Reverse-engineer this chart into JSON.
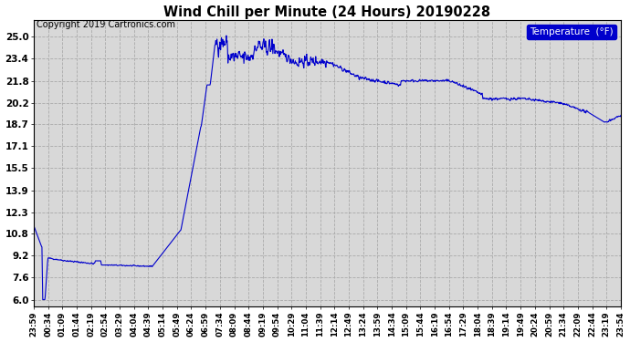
{
  "title": "Wind Chill per Minute (24 Hours) 20190228",
  "copyright_text": "Copyright 2019 Cartronics.com",
  "legend_label": "Temperature  (°F)",
  "line_color": "#0000cc",
  "bg_color": "#ffffff",
  "plot_bg_color": "#d8d8d8",
  "grid_color": "#aaaaaa",
  "yticks": [
    6.0,
    7.6,
    9.2,
    10.8,
    12.3,
    13.9,
    15.5,
    17.1,
    18.7,
    20.2,
    21.8,
    23.4,
    25.0
  ],
  "ylim": [
    5.5,
    26.2
  ],
  "xtick_labels": [
    "23:59",
    "00:34",
    "01:09",
    "01:44",
    "02:19",
    "02:54",
    "03:29",
    "04:04",
    "04:39",
    "05:14",
    "05:49",
    "06:24",
    "06:59",
    "07:34",
    "08:09",
    "08:44",
    "09:19",
    "09:54",
    "10:29",
    "11:04",
    "11:39",
    "12:14",
    "12:49",
    "13:24",
    "13:59",
    "14:34",
    "15:09",
    "15:44",
    "16:19",
    "16:54",
    "17:29",
    "18:04",
    "18:39",
    "19:14",
    "19:49",
    "20:24",
    "20:59",
    "21:34",
    "22:09",
    "22:44",
    "23:19",
    "23:54"
  ],
  "n_points": 1440
}
